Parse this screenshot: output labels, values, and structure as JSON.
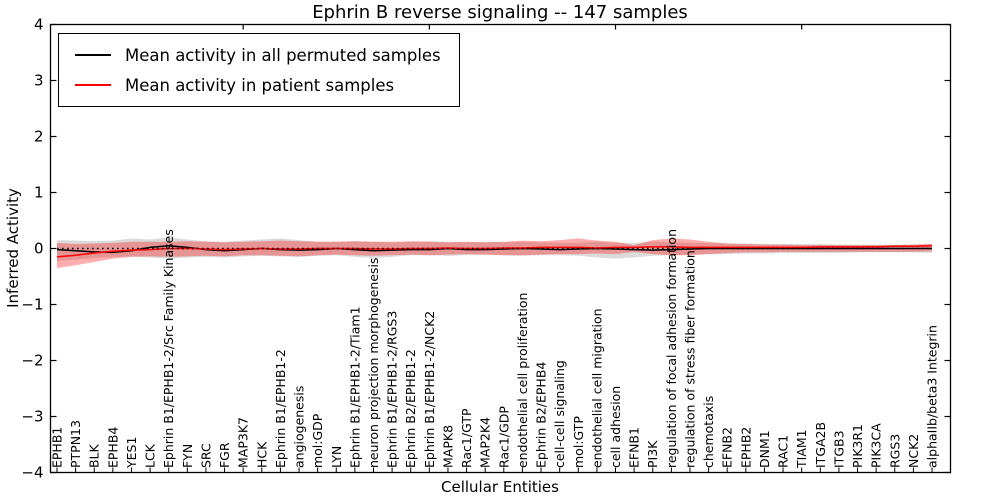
{
  "chart_data": {
    "type": "line",
    "title": "Ephrin B reverse signaling -- 147 samples",
    "xlabel": "Cellular Entities",
    "ylabel": "Inferred Activity",
    "ylim": [
      -4,
      4
    ],
    "yticks": [
      -4,
      -3,
      -2,
      -1,
      0,
      1,
      2,
      3,
      4
    ],
    "grid": false,
    "legend": {
      "position": "upper-left",
      "entries": [
        {
          "label": "Mean activity in all permuted samples",
          "color": "#000000"
        },
        {
          "label": "Mean activity in patient samples",
          "color": "#ff0000"
        }
      ]
    },
    "categories": [
      "EPHB1",
      "PTPN13",
      "BLK",
      "EPHB4",
      "YES1",
      "LCK",
      "Ephrin B1/EPHB1-2/Src Family Kinases",
      "FYN",
      "SRC",
      "FGR",
      "MAP3K7",
      "HCK",
      "Ephrin B1/EPHB1-2",
      "angiogenesis",
      "mol:GDP",
      "LYN",
      "Ephrin B1/EPHB1-2/Tiam1",
      "neuron projection morphogenesis",
      "Ephrin B1/EPHB1-2/RGS3",
      "Ephrin B2/EPHB1-2",
      "Ephrin B1/EPHB1-2/NCK2",
      "MAPK8",
      "Rac1/GTP",
      "MAP2K4",
      "Rac1/GDP",
      "endothelial cell proliferation",
      "Ephrin B2/EPHB4",
      "cell-cell signaling",
      "mol:GTP",
      "endothelial cell migration",
      "cell adhesion",
      "EFNB1",
      "PI3K",
      "regulation of focal adhesion formation",
      "regulation of stress fiber formation",
      "chemotaxis",
      "EFNB2",
      "EPHB2",
      "DNM1",
      "RAC1",
      "TIAM1",
      "ITGA2B",
      "ITGB3",
      "PIK3R1",
      "PIK3CA",
      "RGS3",
      "NCK2",
      "alphaIIb/beta3 Integrin"
    ],
    "series": [
      {
        "name": "Mean activity in all permuted samples",
        "color": "#000000",
        "style": "solid",
        "values": [
          -0.02,
          -0.04,
          -0.06,
          -0.07,
          -0.04,
          0.02,
          0.05,
          0.02,
          -0.02,
          -0.04,
          -0.02,
          0.0,
          -0.02,
          -0.03,
          -0.02,
          0.0,
          -0.02,
          -0.04,
          -0.03,
          -0.02,
          -0.02,
          0.0,
          -0.02,
          -0.02,
          -0.01,
          0.0,
          -0.01,
          -0.02,
          -0.01,
          0.0,
          -0.01,
          -0.02,
          -0.03,
          -0.02,
          -0.01,
          0.0,
          0.0,
          0.0,
          0.0,
          0.0,
          0.0,
          0.0,
          0.0,
          0.0,
          0.0,
          0.0,
          0.0,
          0.0
        ]
      },
      {
        "name": "Mean activity in patient samples",
        "color": "#ff0000",
        "style": "solid",
        "values": [
          -0.15,
          -0.12,
          -0.08,
          -0.05,
          -0.03,
          -0.02,
          0.0,
          0.0,
          -0.01,
          -0.02,
          -0.01,
          0.0,
          -0.01,
          -0.01,
          0.0,
          0.0,
          0.0,
          -0.01,
          -0.01,
          0.0,
          0.0,
          0.01,
          0.0,
          0.0,
          0.01,
          0.01,
          0.02,
          0.02,
          0.02,
          0.01,
          0.02,
          0.02,
          0.03,
          0.03,
          0.02,
          0.02,
          0.02,
          0.02,
          0.02,
          0.02,
          0.02,
          0.03,
          0.03,
          0.03,
          0.03,
          0.04,
          0.04,
          0.05
        ]
      }
    ],
    "zero_reference_line": {
      "value": 0,
      "color": "#000000",
      "style": "dotted"
    },
    "bands": [
      {
        "name": "permuted-sample-range",
        "color": "#7f7f7f",
        "opacity": 0.28,
        "upper": [
          0.15,
          0.14,
          0.13,
          0.14,
          0.18,
          0.16,
          0.2,
          0.16,
          0.13,
          0.12,
          0.14,
          0.16,
          0.18,
          0.15,
          0.12,
          0.12,
          0.13,
          0.12,
          0.11,
          0.12,
          0.13,
          0.12,
          0.11,
          0.12,
          0.11,
          0.12,
          0.11,
          0.1,
          0.1,
          0.12,
          0.1,
          0.1,
          0.12,
          0.11,
          0.1,
          0.1,
          0.09,
          0.09,
          0.08,
          0.08,
          0.08,
          0.08,
          0.07,
          0.07,
          0.07,
          0.07,
          0.07,
          0.08
        ],
        "lower": [
          -0.22,
          -0.2,
          -0.17,
          -0.15,
          -0.14,
          -0.16,
          -0.18,
          -0.16,
          -0.15,
          -0.16,
          -0.14,
          -0.13,
          -0.14,
          -0.15,
          -0.13,
          -0.12,
          -0.15,
          -0.17,
          -0.15,
          -0.12,
          -0.12,
          -0.13,
          -0.12,
          -0.11,
          -0.12,
          -0.13,
          -0.12,
          -0.12,
          -0.13,
          -0.16,
          -0.18,
          -0.16,
          -0.13,
          -0.12,
          -0.11,
          -0.1,
          -0.1,
          -0.09,
          -0.09,
          -0.08,
          -0.08,
          -0.08,
          -0.08,
          -0.07,
          -0.07,
          -0.07,
          -0.07,
          -0.08
        ]
      },
      {
        "name": "patient-sample-range",
        "color": "#ff0000",
        "opacity": 0.32,
        "upper": [
          0.1,
          0.08,
          0.09,
          0.1,
          0.12,
          0.12,
          0.12,
          0.13,
          0.12,
          0.11,
          0.12,
          0.13,
          0.14,
          0.13,
          0.12,
          0.12,
          0.13,
          0.12,
          0.12,
          0.13,
          0.12,
          0.11,
          0.12,
          0.11,
          0.12,
          0.14,
          0.13,
          0.15,
          0.18,
          0.14,
          0.12,
          0.06,
          0.15,
          0.18,
          0.16,
          0.12,
          0.09,
          0.08,
          0.07,
          0.07,
          0.06,
          0.06,
          0.06,
          0.06,
          0.06,
          0.06,
          0.07,
          0.08
        ],
        "lower": [
          -0.35,
          -0.3,
          -0.24,
          -0.18,
          -0.15,
          -0.14,
          -0.15,
          -0.14,
          -0.13,
          -0.14,
          -0.12,
          -0.12,
          -0.13,
          -0.14,
          -0.12,
          -0.11,
          -0.12,
          -0.13,
          -0.12,
          -0.11,
          -0.12,
          -0.11,
          -0.1,
          -0.11,
          -0.12,
          -0.12,
          -0.11,
          -0.1,
          -0.1,
          -0.09,
          -0.1,
          -0.06,
          -0.1,
          -0.12,
          -0.12,
          -0.1,
          -0.08,
          -0.07,
          -0.07,
          -0.06,
          -0.06,
          -0.06,
          -0.06,
          -0.06,
          -0.06,
          -0.06,
          -0.06,
          -0.05
        ]
      }
    ],
    "top_axis_tick_indices": [
      10,
      20,
      30,
      40
    ]
  }
}
